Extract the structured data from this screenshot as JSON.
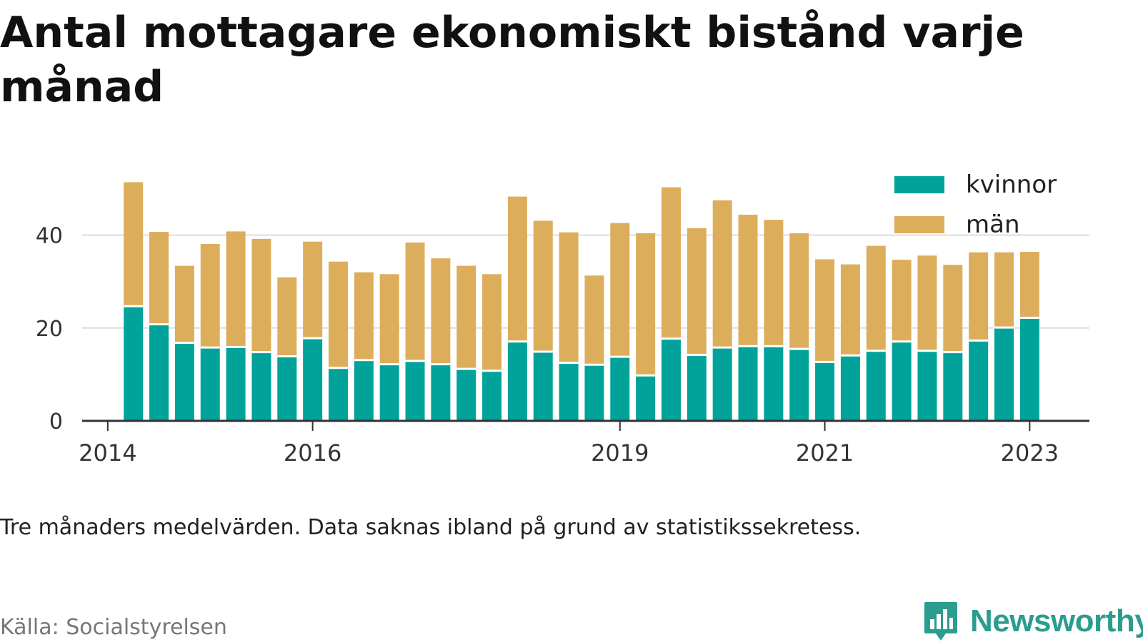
{
  "title": "Antal mottagare ekonomiskt bistånd varje månad",
  "note": "Tre månaders medelvärden. Data saknas ibland på grund av statistikssekretess.",
  "source": "Källa: Socialstyrelsen",
  "brand": {
    "name": "Newsworthy",
    "icon": "bar-chart-speech-bubble-icon",
    "color": "#2a9d8f"
  },
  "colors": {
    "kvinnor": "#00a29a",
    "man": "#dcae5c",
    "grid": "#dddddd",
    "axis": "#333333",
    "tick": "#333333"
  },
  "chart_data": {
    "type": "bar",
    "stacked": true,
    "legend_position": "top-right",
    "grid": true,
    "ylim": [
      0,
      53
    ],
    "y_ticks": [
      0,
      20,
      40
    ],
    "xlim": [
      "2013-10",
      "2023-08"
    ],
    "x_ticks": [
      {
        "date": "2014-01",
        "label": "2014"
      },
      {
        "date": "2016-01",
        "label": "2016"
      },
      {
        "date": "2019-01",
        "label": "2019"
      },
      {
        "date": "2021-01",
        "label": "2021"
      },
      {
        "date": "2023-01",
        "label": "2023"
      }
    ],
    "x": [
      "2014-04",
      "2014-07",
      "2014-10",
      "2015-01",
      "2015-04",
      "2015-07",
      "2015-10",
      "2016-01",
      "2016-04",
      "2016-07",
      "2016-10",
      "2017-01",
      "2017-04",
      "2017-07",
      "2017-10",
      "2018-01",
      "2018-04",
      "2018-07",
      "2018-10",
      "2019-01",
      "2019-04",
      "2019-07",
      "2019-10",
      "2020-01",
      "2020-04",
      "2020-07",
      "2020-10",
      "2021-01",
      "2021-04",
      "2021-07",
      "2021-10",
      "2022-01",
      "2022-04",
      "2022-07",
      "2022-10",
      "2023-01"
    ],
    "series": [
      {
        "name": "kvinnor",
        "values": [
          24.7,
          20.8,
          16.8,
          15.8,
          15.9,
          14.8,
          13.9,
          17.8,
          11.4,
          13.1,
          12.2,
          12.9,
          12.2,
          11.2,
          10.8,
          17.1,
          14.9,
          12.5,
          12.1,
          13.8,
          9.8,
          17.7,
          14.2,
          15.8,
          16.1,
          16.1,
          15.5,
          12.7,
          14.1,
          15.1,
          17.1,
          15.1,
          14.8,
          17.3,
          20.1,
          22.2
        ]
      },
      {
        "name": "män",
        "values": [
          26.7,
          19.9,
          16.6,
          22.3,
          24.9,
          24.4,
          17.0,
          20.8,
          22.9,
          18.9,
          19.4,
          25.5,
          22.8,
          22.2,
          20.8,
          31.2,
          28.2,
          28.1,
          19.2,
          28.8,
          30.6,
          32.6,
          27.3,
          31.7,
          28.3,
          27.2,
          24.9,
          22.1,
          19.6,
          22.6,
          17.6,
          20.5,
          18.8,
          19.0,
          16.2,
          14.2
        ]
      }
    ]
  }
}
